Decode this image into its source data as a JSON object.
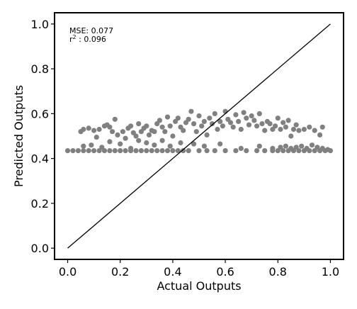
{
  "chart_data": {
    "type": "scatter",
    "xlabel": "Actual Outputs",
    "ylabel": "Predicted Outputs",
    "xlim": [
      -0.05,
      1.05
    ],
    "ylim": [
      -0.05,
      1.05
    ],
    "x_ticks": [
      "0.0",
      "0.2",
      "0.4",
      "0.6",
      "0.8",
      "1.0"
    ],
    "y_ticks": [
      "0.0",
      "0.2",
      "0.4",
      "0.6",
      "0.8",
      "1.0"
    ],
    "grid": false,
    "annotations": {
      "mse": "MSE: 0.077",
      "r2_prefix": "r",
      "r2_exp": "2",
      "r2_rest": " : 0.096"
    },
    "reference_line": {
      "x": [
        0,
        1
      ],
      "y": [
        0,
        1
      ],
      "color": "#000000"
    },
    "marker_color": "#808080",
    "series": [
      {
        "points": [
          [
            0.0,
            0.435
          ],
          [
            0.02,
            0.435
          ],
          [
            0.04,
            0.435
          ],
          [
            0.06,
            0.435
          ],
          [
            0.08,
            0.435
          ],
          [
            0.1,
            0.435
          ],
          [
            0.12,
            0.435
          ],
          [
            0.14,
            0.435
          ],
          [
            0.16,
            0.435
          ],
          [
            0.18,
            0.435
          ],
          [
            0.2,
            0.435
          ],
          [
            0.22,
            0.435
          ],
          [
            0.24,
            0.435
          ],
          [
            0.26,
            0.435
          ],
          [
            0.28,
            0.435
          ],
          [
            0.3,
            0.435
          ],
          [
            0.32,
            0.435
          ],
          [
            0.34,
            0.435
          ],
          [
            0.36,
            0.435
          ],
          [
            0.38,
            0.435
          ],
          [
            0.4,
            0.435
          ],
          [
            0.42,
            0.435
          ],
          [
            0.44,
            0.435
          ],
          [
            0.46,
            0.435
          ],
          [
            0.5,
            0.435
          ],
          [
            0.53,
            0.435
          ],
          [
            0.56,
            0.435
          ],
          [
            0.6,
            0.435
          ],
          [
            0.64,
            0.435
          ],
          [
            0.68,
            0.435
          ],
          [
            0.72,
            0.435
          ],
          [
            0.75,
            0.435
          ],
          [
            0.78,
            0.435
          ],
          [
            0.8,
            0.435
          ],
          [
            0.82,
            0.435
          ],
          [
            0.84,
            0.435
          ],
          [
            0.86,
            0.435
          ],
          [
            0.88,
            0.435
          ],
          [
            0.9,
            0.435
          ],
          [
            0.92,
            0.435
          ],
          [
            0.94,
            0.435
          ],
          [
            0.96,
            0.435
          ],
          [
            0.98,
            0.435
          ],
          [
            1.0,
            0.435
          ],
          [
            0.05,
            0.52
          ],
          [
            0.06,
            0.53
          ],
          [
            0.08,
            0.535
          ],
          [
            0.1,
            0.525
          ],
          [
            0.11,
            0.495
          ],
          [
            0.12,
            0.53
          ],
          [
            0.14,
            0.545
          ],
          [
            0.15,
            0.55
          ],
          [
            0.16,
            0.54
          ],
          [
            0.17,
            0.52
          ],
          [
            0.18,
            0.575
          ],
          [
            0.19,
            0.505
          ],
          [
            0.21,
            0.52
          ],
          [
            0.22,
            0.49
          ],
          [
            0.23,
            0.535
          ],
          [
            0.24,
            0.545
          ],
          [
            0.25,
            0.515
          ],
          [
            0.26,
            0.5
          ],
          [
            0.27,
            0.555
          ],
          [
            0.28,
            0.52
          ],
          [
            0.29,
            0.535
          ],
          [
            0.3,
            0.545
          ],
          [
            0.31,
            0.505
          ],
          [
            0.32,
            0.525
          ],
          [
            0.33,
            0.52
          ],
          [
            0.34,
            0.555
          ],
          [
            0.35,
            0.57
          ],
          [
            0.36,
            0.54
          ],
          [
            0.37,
            0.52
          ],
          [
            0.38,
            0.585
          ],
          [
            0.39,
            0.545
          ],
          [
            0.4,
            0.5
          ],
          [
            0.41,
            0.565
          ],
          [
            0.42,
            0.58
          ],
          [
            0.43,
            0.54
          ],
          [
            0.44,
            0.525
          ],
          [
            0.45,
            0.56
          ],
          [
            0.46,
            0.575
          ],
          [
            0.47,
            0.61
          ],
          [
            0.48,
            0.555
          ],
          [
            0.49,
            0.52
          ],
          [
            0.5,
            0.59
          ],
          [
            0.51,
            0.545
          ],
          [
            0.52,
            0.565
          ],
          [
            0.53,
            0.505
          ],
          [
            0.54,
            0.58
          ],
          [
            0.55,
            0.555
          ],
          [
            0.56,
            0.6
          ],
          [
            0.57,
            0.53
          ],
          [
            0.58,
            0.565
          ],
          [
            0.59,
            0.545
          ],
          [
            0.6,
            0.61
          ],
          [
            0.61,
            0.575
          ],
          [
            0.62,
            0.56
          ],
          [
            0.63,
            0.54
          ],
          [
            0.64,
            0.595
          ],
          [
            0.65,
            0.565
          ],
          [
            0.66,
            0.53
          ],
          [
            0.67,
            0.605
          ],
          [
            0.68,
            0.58
          ],
          [
            0.69,
            0.55
          ],
          [
            0.7,
            0.59
          ],
          [
            0.71,
            0.57
          ],
          [
            0.72,
            0.545
          ],
          [
            0.73,
            0.6
          ],
          [
            0.74,
            0.555
          ],
          [
            0.75,
            0.525
          ],
          [
            0.76,
            0.565
          ],
          [
            0.77,
            0.555
          ],
          [
            0.78,
            0.53
          ],
          [
            0.79,
            0.545
          ],
          [
            0.8,
            0.58
          ],
          [
            0.81,
            0.53
          ],
          [
            0.82,
            0.56
          ],
          [
            0.83,
            0.54
          ],
          [
            0.84,
            0.57
          ],
          [
            0.85,
            0.5
          ],
          [
            0.86,
            0.53
          ],
          [
            0.87,
            0.55
          ],
          [
            0.88,
            0.525
          ],
          [
            0.9,
            0.53
          ],
          [
            0.92,
            0.54
          ],
          [
            0.94,
            0.525
          ],
          [
            0.96,
            0.505
          ],
          [
            0.97,
            0.54
          ],
          [
            0.06,
            0.455
          ],
          [
            0.09,
            0.46
          ],
          [
            0.13,
            0.45
          ],
          [
            0.16,
            0.475
          ],
          [
            0.2,
            0.465
          ],
          [
            0.24,
            0.445
          ],
          [
            0.27,
            0.48
          ],
          [
            0.3,
            0.47
          ],
          [
            0.33,
            0.46
          ],
          [
            0.36,
            0.48
          ],
          [
            0.39,
            0.455
          ],
          [
            0.43,
            0.47
          ],
          [
            0.48,
            0.465
          ],
          [
            0.52,
            0.455
          ],
          [
            0.58,
            0.465
          ],
          [
            0.66,
            0.445
          ],
          [
            0.73,
            0.455
          ],
          [
            0.78,
            0.445
          ],
          [
            0.81,
            0.45
          ],
          [
            0.83,
            0.455
          ],
          [
            0.85,
            0.445
          ],
          [
            0.87,
            0.45
          ],
          [
            0.89,
            0.455
          ],
          [
            0.91,
            0.445
          ],
          [
            0.93,
            0.46
          ],
          [
            0.95,
            0.45
          ],
          [
            0.97,
            0.445
          ],
          [
            0.99,
            0.44
          ]
        ]
      }
    ]
  }
}
